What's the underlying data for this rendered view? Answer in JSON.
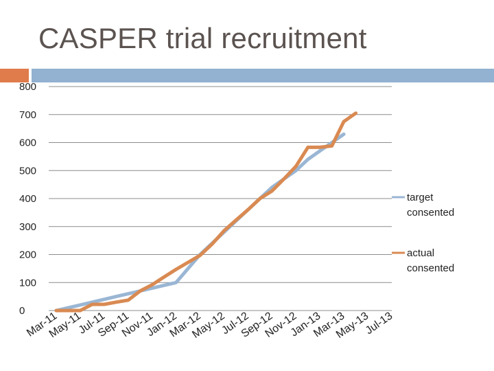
{
  "slide": {
    "title": "CASPER trial recruitment"
  },
  "colors": {
    "title": "#5b5350",
    "accent_orange": "#e07c4c",
    "accent_blue": "#93b1d0",
    "target_line": "#9ab6d4",
    "actual_line": "#d98a52",
    "grid": "#8c8c8c"
  },
  "chart_data": {
    "type": "line",
    "title": "",
    "xlabel": "",
    "ylabel": "",
    "ylim": [
      0,
      800
    ],
    "yticks": [
      0,
      100,
      200,
      300,
      400,
      500,
      600,
      700,
      800
    ],
    "grid": true,
    "legend_position": "right",
    "x_tick_labels": [
      "Mar-11",
      "May-11",
      "Jul-11",
      "Sep-11",
      "Nov-11",
      "Jan-12",
      "Mar-12",
      "May-12",
      "Jul-12",
      "Sep-12",
      "Nov-12",
      "Jan-13",
      "Mar-13",
      "May-13",
      "Jul-13"
    ],
    "x": [
      "Mar-11",
      "Apr-11",
      "May-11",
      "Jun-11",
      "Jul-11",
      "Aug-11",
      "Sep-11",
      "Oct-11",
      "Nov-11",
      "Dec-11",
      "Jan-12",
      "Feb-12",
      "Mar-12",
      "Apr-12",
      "May-12",
      "Jun-12",
      "Jul-12",
      "Aug-12",
      "Sep-12",
      "Oct-12",
      "Nov-12",
      "Dec-12",
      "Jan-13",
      "Feb-13",
      "Mar-13",
      "Apr-13",
      "May-13",
      "Jun-13",
      "Jul-13"
    ],
    "series": [
      {
        "name": "target consented",
        "values": [
          0,
          10,
          20,
          30,
          40,
          50,
          60,
          70,
          80,
          90,
          100,
          150,
          200,
          240,
          280,
          320,
          360,
          400,
          440,
          470,
          500,
          540,
          570,
          600,
          630,
          null,
          null,
          null,
          null
        ]
      },
      {
        "name": "actual consented",
        "values": [
          0,
          0,
          0,
          22,
          22,
          30,
          37,
          70,
          92,
          120,
          147,
          172,
          197,
          237,
          285,
          323,
          360,
          400,
          427,
          470,
          515,
          583,
          583,
          588,
          675,
          705,
          null,
          null,
          null
        ]
      }
    ]
  }
}
